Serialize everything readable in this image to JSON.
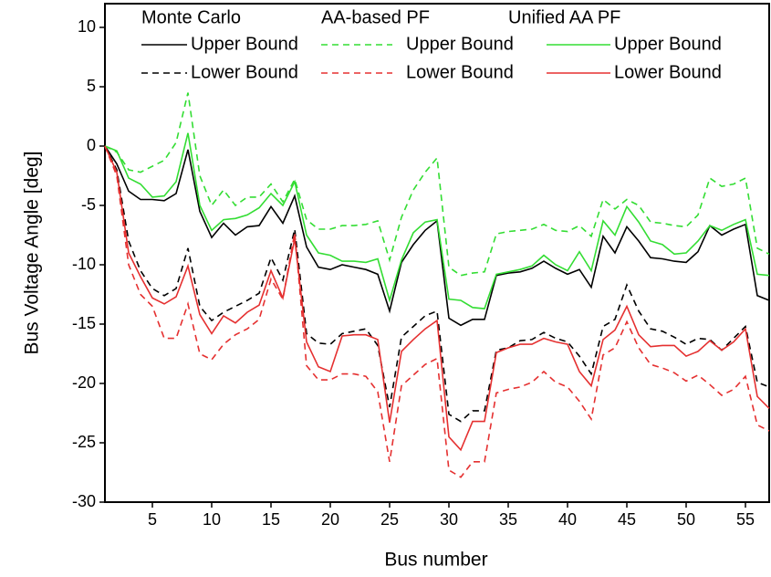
{
  "chart_data": {
    "type": "line",
    "x_label": "Bus number",
    "y_label": "Bus Voltage Angle [deg]",
    "legend_titles": [
      "Monte Carlo",
      "AA-based PF",
      "Unified AA PF"
    ],
    "x": [
      1,
      2,
      3,
      4,
      5,
      6,
      7,
      8,
      9,
      10,
      11,
      12,
      13,
      14,
      15,
      16,
      17,
      18,
      19,
      20,
      21,
      22,
      23,
      24,
      25,
      26,
      27,
      28,
      29,
      30,
      31,
      32,
      33,
      34,
      35,
      36,
      37,
      38,
      39,
      40,
      41,
      42,
      43,
      44,
      45,
      46,
      47,
      48,
      49,
      50,
      51,
      52,
      53,
      54,
      55,
      56,
      57
    ],
    "xlim": [
      1,
      57
    ],
    "xticks": [
      5,
      10,
      15,
      20,
      25,
      30,
      35,
      40,
      45,
      50,
      55
    ],
    "ylim": [
      -30,
      12
    ],
    "yticks": [
      -30,
      -25,
      -20,
      -15,
      -10,
      -5,
      0,
      5,
      10
    ],
    "series": [
      {
        "name": "Upper Bound",
        "color": "#000000",
        "dashed": false,
        "values": [
          0,
          -1.5,
          -3.8,
          -4.5,
          -4.5,
          -4.6,
          -4,
          -0.3,
          -5.5,
          -7.7,
          -6.5,
          -7.5,
          -6.8,
          -6.7,
          -5.1,
          -6.5,
          -4.2,
          -8.5,
          -10.2,
          -10.4,
          -10,
          -10.2,
          -10.4,
          -10.8,
          -13.9,
          -9.8,
          -8.3,
          -7.1,
          -6.3,
          -14.5,
          -15.1,
          -14.6,
          -14.6,
          -10.9,
          -10.7,
          -10.6,
          -10.3,
          -9.7,
          -10.3,
          -10.8,
          -10.4,
          -11.9,
          -7.6,
          -9,
          -6.8,
          -8,
          -9.4,
          -9.5,
          -9.7,
          -9.8,
          -8.9,
          -6.7,
          -7.5,
          -7,
          -6.6,
          -12.6,
          -13
        ]
      },
      {
        "name": "Lower Bound",
        "color": "#000000",
        "dashed": true,
        "values": [
          0,
          -2,
          -8,
          -10.5,
          -12,
          -12.6,
          -12,
          -8.6,
          -13.5,
          -14.7,
          -14,
          -13.5,
          -13,
          -12.4,
          -9.4,
          -11.3,
          -7,
          -15.8,
          -16.6,
          -16.7,
          -15.8,
          -15.6,
          -15.4,
          -16.8,
          -22,
          -16.1,
          -15.2,
          -14.3,
          -13.9,
          -22.6,
          -23.2,
          -22.3,
          -22.3,
          -17.2,
          -17,
          -16.4,
          -16.3,
          -15.7,
          -16.2,
          -16.5,
          -17.7,
          -19.2,
          -15.2,
          -14.6,
          -11.7,
          -13.9,
          -15.4,
          -15.6,
          -16.1,
          -16.7,
          -16.2,
          -16.3,
          -17.2,
          -16.2,
          -15.2,
          -19.9,
          -20.3
        ]
      },
      {
        "name": "Upper Bound",
        "color": "#33dd33",
        "dashed": true,
        "values": [
          0,
          -0.5,
          -2,
          -2.2,
          -1.7,
          -1.2,
          0.3,
          4.5,
          -2.5,
          -5,
          -3.7,
          -5,
          -4.3,
          -4.3,
          -3.2,
          -4.7,
          -2.8,
          -6.2,
          -7,
          -7,
          -6.7,
          -6.7,
          -6.6,
          -6.3,
          -9.6,
          -6,
          -3.7,
          -2.2,
          -1,
          -10.2,
          -10.9,
          -10.7,
          -10.6,
          -7.4,
          -7.2,
          -7.1,
          -7,
          -6.6,
          -7.1,
          -7.2,
          -6.7,
          -7.6,
          -4.5,
          -5.3,
          -4.5,
          -5,
          -6.4,
          -6.5,
          -6.7,
          -6.8,
          -5.8,
          -2.7,
          -3.4,
          -3.2,
          -2.7,
          -8.6,
          -9.1
        ]
      },
      {
        "name": "Lower Bound",
        "color": "#e53030",
        "dashed": true,
        "values": [
          0,
          -2.5,
          -10,
          -12.5,
          -13.5,
          -16.2,
          -16.2,
          -13.3,
          -17.5,
          -18,
          -16.7,
          -15.9,
          -15.4,
          -14.6,
          -11.2,
          -12.9,
          -7.3,
          -18.5,
          -19.7,
          -19.7,
          -19.2,
          -19.2,
          -19.4,
          -20.7,
          -26.6,
          -20.2,
          -19.3,
          -18.4,
          -17.9,
          -27.3,
          -27.9,
          -26.6,
          -26.6,
          -20.8,
          -20.5,
          -20.3,
          -19.9,
          -19,
          -19.9,
          -20.3,
          -21.5,
          -23,
          -17.6,
          -17,
          -14.8,
          -17,
          -18.4,
          -18.7,
          -19.1,
          -19.8,
          -19.3,
          -20.1,
          -21,
          -20.5,
          -19.4,
          -23.5,
          -24
        ]
      },
      {
        "name": "Upper Bound",
        "color": "#33dd33",
        "dashed": false,
        "values": [
          0,
          -0.4,
          -2.7,
          -3.2,
          -4.3,
          -4.2,
          -3,
          1.1,
          -5,
          -7.1,
          -6.2,
          -6.1,
          -5.8,
          -5.2,
          -4,
          -5,
          -3,
          -7.5,
          -9,
          -9.2,
          -9.7,
          -9.7,
          -9.8,
          -9.5,
          -13,
          -9.6,
          -7.3,
          -6.4,
          -6.2,
          -12.9,
          -13,
          -13.6,
          -13.7,
          -10.8,
          -10.6,
          -10.4,
          -10.1,
          -9.2,
          -10,
          -10.5,
          -8.9,
          -10.5,
          -6.3,
          -7.5,
          -5.1,
          -6.4,
          -8,
          -8.3,
          -9.1,
          -9,
          -8,
          -6.7,
          -7.1,
          -6.6,
          -6.2,
          -10.8,
          -10.9
        ]
      },
      {
        "name": "Lower Bound",
        "color": "#e53030",
        "dashed": false,
        "values": [
          0,
          -2.2,
          -9,
          -11,
          -12.8,
          -13.3,
          -12.7,
          -10.1,
          -14.2,
          -15.8,
          -14.3,
          -14.9,
          -14,
          -13.4,
          -10.5,
          -12.8,
          -7.8,
          -16.5,
          -18.6,
          -19,
          -16,
          -15.9,
          -15.9,
          -16.3,
          -23.3,
          -17.3,
          -16.3,
          -15.4,
          -14.7,
          -24.5,
          -25.6,
          -23.2,
          -23.2,
          -17.4,
          -17,
          -16.7,
          -16.7,
          -16.2,
          -16.5,
          -16.7,
          -19,
          -20.2,
          -16.3,
          -15.5,
          -13.5,
          -15.9,
          -16.9,
          -16.8,
          -16.8,
          -17.7,
          -17.3,
          -16.4,
          -17.2,
          -16.5,
          -15.4,
          -21.1,
          -22.1
        ]
      }
    ]
  }
}
